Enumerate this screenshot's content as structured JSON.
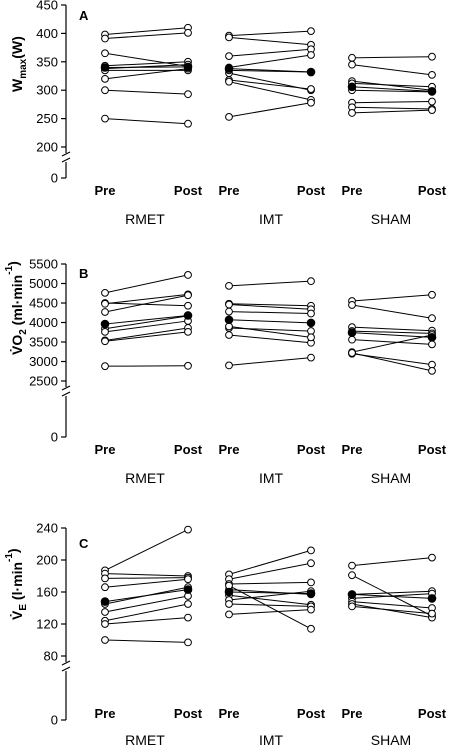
{
  "chart_data": [
    {
      "type": "line",
      "panel": "A",
      "ylabel_main": "W",
      "ylabel_sub": "max",
      "ylabel_tail": "(W)",
      "yticks": [
        0,
        200,
        250,
        300,
        350,
        400,
        450
      ],
      "ylim": [
        200,
        450
      ],
      "axis_break": true,
      "x_tick_labels": [
        "Pre",
        "Post"
      ],
      "groups": [
        {
          "name": "RMET",
          "subjects": [
            [
              398,
              410
            ],
            [
              391,
              401
            ],
            [
              365,
              342
            ],
            [
              343,
              350
            ],
            [
              338,
              345
            ],
            [
              335,
              335
            ],
            [
              320,
              338
            ],
            [
              300,
              293
            ],
            [
              250,
              241
            ]
          ],
          "mean": [
            340,
            341
          ]
        },
        {
          "name": "IMT",
          "subjects": [
            [
              396,
              404
            ],
            [
              393,
              380
            ],
            [
              360,
              372
            ],
            [
              340,
              362
            ],
            [
              330,
              300
            ],
            [
              318,
              302
            ],
            [
              315,
              283
            ],
            [
              253,
              278
            ],
            [
              335,
              332
            ]
          ],
          "mean": [
            338,
            332
          ]
        },
        {
          "name": "SHAM",
          "subjects": [
            [
              357,
              359
            ],
            [
              345,
              327
            ],
            [
              316,
              300
            ],
            [
              312,
              306
            ],
            [
              300,
              297
            ],
            [
              278,
              280
            ],
            [
              270,
              267
            ],
            [
              260,
              265
            ]
          ],
          "mean": [
            306,
            298
          ]
        }
      ]
    },
    {
      "type": "line",
      "panel": "B",
      "ylabel_main": "V̇O",
      "ylabel_sub": "2",
      "ylabel_tail": " (ml·min",
      "ylabel_sup": "-1",
      "ylabel_close": ")",
      "yticks": [
        0,
        2500,
        3000,
        3500,
        4000,
        4500,
        5000,
        5500
      ],
      "ylim": [
        2500,
        5500
      ],
      "axis_break": true,
      "x_tick_labels": [
        "Pre",
        "Post"
      ],
      "groups": [
        {
          "name": "RMET",
          "subjects": [
            [
              4760,
              5220
            ],
            [
              4500,
              4430
            ],
            [
              4480,
              4720
            ],
            [
              4270,
              4700
            ],
            [
              3840,
              4170
            ],
            [
              3760,
              4040
            ],
            [
              3540,
              3860
            ],
            [
              3520,
              3760
            ],
            [
              2880,
              2890
            ]
          ],
          "mean": [
            3960,
            4180
          ]
        },
        {
          "name": "IMT",
          "subjects": [
            [
              4940,
              5060
            ],
            [
              4480,
              4430
            ],
            [
              4460,
              4340
            ],
            [
              4280,
              4230
            ],
            [
              3860,
              3780
            ],
            [
              3680,
              3480
            ],
            [
              3900,
              3620
            ],
            [
              2900,
              3100
            ]
          ],
          "mean": [
            4070,
            3990
          ]
        },
        {
          "name": "SHAM",
          "subjects": [
            [
              4550,
              4710
            ],
            [
              4450,
              4110
            ],
            [
              3880,
              3790
            ],
            [
              3780,
              3720
            ],
            [
              3560,
              3440
            ],
            [
              3240,
              3680
            ],
            [
              3200,
              2920
            ],
            [
              3220,
              2760
            ]
          ],
          "mean": [
            3740,
            3620
          ]
        }
      ]
    },
    {
      "type": "line",
      "panel": "C",
      "ylabel_main": "V̇",
      "ylabel_sub": "E",
      "ylabel_tail": " (l·min",
      "ylabel_sup": "-1",
      "ylabel_close": ")",
      "yticks": [
        0,
        80,
        120,
        160,
        200,
        240
      ],
      "ylim": [
        80,
        240
      ],
      "axis_break": true,
      "x_tick_labels": [
        "Pre",
        "Post"
      ],
      "groups": [
        {
          "name": "RMET",
          "subjects": [
            [
              187,
              238
            ],
            [
              183,
              180
            ],
            [
              177,
              178
            ],
            [
              166,
              176
            ],
            [
              145,
              166
            ],
            [
              135,
              155
            ],
            [
              124,
              145
            ],
            [
              120,
              128
            ],
            [
              100,
              97
            ]
          ],
          "mean": [
            148,
            163
          ]
        },
        {
          "name": "IMT",
          "subjects": [
            [
              182,
              212
            ],
            [
              176,
              196
            ],
            [
              170,
              172
            ],
            [
              163,
              157
            ],
            [
              156,
              144
            ],
            [
              150,
              161
            ],
            [
              145,
              142
            ],
            [
              132,
              138
            ],
            [
              168,
              114
            ]
          ],
          "mean": [
            160,
            158
          ]
        },
        {
          "name": "SHAM",
          "subjects": [
            [
              193,
              203
            ],
            [
              181,
              130
            ],
            [
              157,
              161
            ],
            [
              152,
              158
            ],
            [
              148,
              140
            ],
            [
              145,
              128
            ],
            [
              142,
              133
            ]
          ],
          "mean": [
            157,
            152
          ]
        }
      ]
    }
  ]
}
